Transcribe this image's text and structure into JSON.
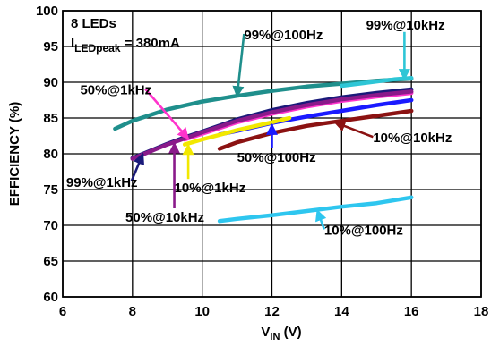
{
  "chart_data": {
    "type": "line",
    "xlabel_main": "V",
    "xlabel_sub": "IN",
    "xlabel_unit": " (V)",
    "ylabel": "EFFICIENCY (%)",
    "xlim": [
      6,
      18
    ],
    "ylim": [
      60,
      100
    ],
    "xticks": [
      6,
      8,
      10,
      12,
      14,
      16,
      18
    ],
    "yticks": [
      60,
      65,
      70,
      75,
      80,
      85,
      90,
      95,
      100
    ],
    "grid": true,
    "info_line1": "8 LEDs",
    "info_line2_main": "I",
    "info_line2_sub": "LEDpeak",
    "info_line2_rest": " = 380mA",
    "series": [
      {
        "name": "99%@100Hz",
        "color": "#1f8f8c",
        "x": [
          7.5,
          8,
          9,
          10,
          11,
          12,
          13,
          14,
          15,
          16
        ],
        "y": [
          83.5,
          84.6,
          86.2,
          87.3,
          88.1,
          88.8,
          89.4,
          89.8,
          90.2,
          90.5
        ]
      },
      {
        "name": "99%@10kHz",
        "color": "#2ec6d6",
        "x": [
          14,
          14.5,
          15,
          15.5,
          16
        ],
        "y": [
          89.5,
          89.8,
          90.1,
          90.4,
          90.6
        ]
      },
      {
        "name": "99%@1kHz",
        "color": "#1a1a7a",
        "x": [
          8,
          8.5,
          9,
          9.5,
          10,
          11,
          12,
          13,
          14,
          15,
          16
        ],
        "y": [
          79.4,
          80.4,
          81.4,
          82.3,
          83.1,
          84.8,
          86.1,
          87.1,
          87.9,
          88.5,
          89.0
        ]
      },
      {
        "name": "50%@1kHz",
        "color": "#ff33cc",
        "x": [
          9.5,
          10,
          11,
          12,
          13,
          14,
          15,
          16
        ],
        "y": [
          82.0,
          82.8,
          84.4,
          85.6,
          86.6,
          87.4,
          88.0,
          88.5
        ]
      },
      {
        "name": "50%@10kHz",
        "color": "#8a1a8a",
        "x": [
          8,
          9,
          10,
          11,
          12,
          13,
          14,
          15,
          16
        ],
        "y": [
          79.3,
          81.3,
          83.0,
          84.6,
          85.8,
          86.8,
          87.6,
          88.2,
          88.7
        ]
      },
      {
        "name": "50%@100Hz",
        "color": "#1a1aff",
        "x": [
          10.5,
          11,
          12,
          13,
          14,
          15,
          16
        ],
        "y": [
          82.7,
          83.2,
          84.3,
          85.2,
          86.0,
          86.8,
          87.5
        ]
      },
      {
        "name": "10%@1kHz",
        "color": "#f2e800",
        "x": [
          9.5,
          10,
          11,
          12,
          12.5
        ],
        "y": [
          81.3,
          82.0,
          83.3,
          84.4,
          85.0
        ]
      },
      {
        "name": "10%@10kHz",
        "color": "#8b1212",
        "x": [
          10.5,
          11,
          12,
          13,
          14,
          15,
          16
        ],
        "y": [
          80.7,
          81.6,
          82.9,
          83.9,
          84.6,
          85.3,
          86.0
        ]
      },
      {
        "name": "10%@100Hz",
        "color": "#2ec6ef",
        "x": [
          10.5,
          11,
          12,
          13,
          14,
          15,
          16
        ],
        "y": [
          70.6,
          70.9,
          71.4,
          72.0,
          72.6,
          73.1,
          73.9
        ]
      }
    ],
    "annotations": [
      {
        "text": "99%@10kHz",
        "color": "#2ec6d6",
        "label_x": 14.7,
        "label_y": 97.4,
        "target_x": 15.8,
        "target_y": 90.4
      },
      {
        "text": "99%@100Hz",
        "color": "#1f8f8c",
        "label_x": 11.2,
        "label_y": 96.0,
        "target_x": 11.0,
        "target_y": 88.0
      },
      {
        "text": "50%@1kHz",
        "color": "#ff33cc",
        "label_x": 6.5,
        "label_y": 88.3,
        "target_x": 9.6,
        "target_y": 82.1
      },
      {
        "text": "10%@10kHz",
        "color": "#8b1212",
        "label_x": 14.9,
        "label_y": 81.6,
        "target_x": 13.8,
        "target_y": 84.4
      },
      {
        "text": "50%@100Hz",
        "color": "#1a1aff",
        "label_x": 11.0,
        "label_y": 78.9,
        "target_x": 12.0,
        "target_y": 84.1
      },
      {
        "text": "99%@1kHz",
        "color": "#1a1a7a",
        "label_x": 6.1,
        "label_y": 75.4,
        "target_x": 8.3,
        "target_y": 80.0
      },
      {
        "text": "10%@1kHz",
        "color": "#f2e800",
        "label_x": 9.2,
        "label_y": 74.6,
        "target_x": 9.6,
        "target_y": 81.3
      },
      {
        "text": "50%@10kHz",
        "color": "#8a1a8a",
        "label_x": 7.8,
        "label_y": 70.5,
        "target_x": 9.2,
        "target_y": 81.5
      },
      {
        "text": "10%@100Hz",
        "color": "#2ec6ef",
        "label_x": 13.5,
        "label_y": 68.7,
        "target_x": 13.3,
        "target_y": 72.1
      }
    ]
  }
}
